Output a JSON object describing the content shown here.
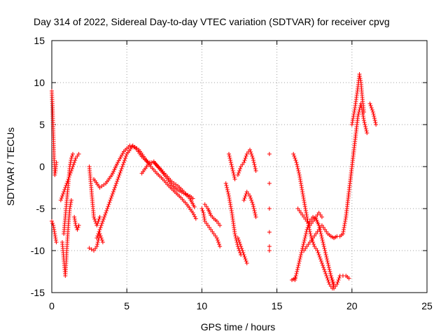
{
  "chart_data": {
    "type": "scatter",
    "title": "Day 314 of 2022, Sidereal Day-to-day VTEC variation (SDTVAR) for receiver cpvg",
    "xlabel": "GPS time / hours",
    "ylabel": "SDTVAR / TECUs",
    "xlim": [
      0,
      25
    ],
    "ylim": [
      -15,
      15
    ],
    "xticks": [
      0,
      5,
      10,
      15,
      20,
      25
    ],
    "yticks": [
      -15,
      -10,
      -5,
      0,
      5,
      10,
      15
    ],
    "grid": true,
    "marker": "+",
    "series_color": "#ff0000",
    "tracks": [
      {
        "name": "arc-01",
        "x": [
          0.0,
          0.05,
          0.1,
          0.15,
          0.2,
          0.25,
          0.3
        ],
        "y": [
          9.0,
          7.0,
          4.0,
          1.0,
          -1.0,
          -0.5,
          0.5
        ]
      },
      {
        "name": "arc-02",
        "x": [
          0.0,
          0.1,
          0.2,
          0.3
        ],
        "y": [
          -6.5,
          -7.0,
          -8.0,
          -9.0
        ]
      },
      {
        "name": "arc-03",
        "x": [
          0.7,
          0.8,
          0.9,
          1.0,
          1.1,
          1.2,
          1.3
        ],
        "y": [
          -9.0,
          -11.0,
          -13.0,
          -10.0,
          -7.0,
          -5.0,
          -4.0
        ]
      },
      {
        "name": "arc-04",
        "x": [
          0.6,
          0.8,
          1.0,
          1.2,
          1.4,
          1.6,
          1.8
        ],
        "y": [
          -4.0,
          -3.0,
          -2.0,
          -1.0,
          0.0,
          1.0,
          1.5
        ]
      },
      {
        "name": "arc-05",
        "x": [
          0.8,
          0.9,
          1.0,
          1.1,
          1.2,
          1.3,
          1.4
        ],
        "y": [
          -8.0,
          -6.0,
          -4.0,
          -2.0,
          0.0,
          1.0,
          1.5
        ]
      },
      {
        "name": "arc-06",
        "x": [
          1.5,
          1.6,
          1.7,
          1.8
        ],
        "y": [
          -6.0,
          -7.0,
          -7.5,
          -7.0
        ]
      },
      {
        "name": "arc-07",
        "x": [
          2.5,
          2.6,
          2.7,
          2.8,
          3.0,
          3.2
        ],
        "y": [
          0.0,
          -2.0,
          -4.0,
          -6.0,
          -7.0,
          -6.0
        ]
      },
      {
        "name": "arc-08",
        "x": [
          2.5,
          2.8,
          3.0,
          3.2,
          3.4
        ],
        "y": [
          -9.7,
          -10.0,
          -9.5,
          -8.0,
          -9.0
        ]
      },
      {
        "name": "arc-09",
        "x": [
          3.0,
          3.4,
          3.8,
          4.2,
          4.6,
          5.0,
          5.4,
          5.8,
          6.2,
          6.6,
          7.0,
          7.4,
          7.8,
          8.2,
          8.6,
          9.0,
          9.4,
          9.6
        ],
        "y": [
          -8.5,
          -6.5,
          -4.5,
          -2.5,
          -0.5,
          1.5,
          2.5,
          2.0,
          1.0,
          0.0,
          -0.8,
          -1.5,
          -2.3,
          -3.0,
          -3.7,
          -4.5,
          -5.5,
          -6.2
        ]
      },
      {
        "name": "arc-10",
        "x": [
          2.8,
          3.2,
          3.6,
          4.0,
          4.4,
          4.8,
          5.2,
          5.6,
          6.0,
          6.4,
          6.8,
          7.2,
          7.6,
          8.0,
          8.4,
          8.8,
          9.2,
          9.5
        ],
        "y": [
          -1.5,
          -2.5,
          -2.0,
          -1.0,
          0.5,
          1.8,
          2.5,
          2.2,
          1.2,
          0.5,
          0.5,
          -0.2,
          -1.0,
          -1.8,
          -2.3,
          -3.0,
          -3.8,
          -4.8
        ]
      },
      {
        "name": "arc-11",
        "x": [
          6.0,
          6.4,
          6.8,
          7.2,
          7.6,
          8.0,
          8.4,
          8.8,
          9.2,
          9.4
        ],
        "y": [
          -0.8,
          0.2,
          0.6,
          -0.3,
          -1.2,
          -2.2,
          -2.8,
          -3.2,
          -3.5,
          -3.8
        ]
      },
      {
        "name": "arc-12",
        "x": [
          10.0,
          10.1,
          10.2,
          10.4,
          10.6,
          10.8,
          11.0,
          11.2
        ],
        "y": [
          -5.0,
          -5.5,
          -6.5,
          -7.0,
          -7.5,
          -8.0,
          -8.5,
          -9.5
        ]
      },
      {
        "name": "arc-13",
        "x": [
          10.2,
          10.4,
          10.6,
          10.8,
          11.0,
          11.2
        ],
        "y": [
          -4.5,
          -5.0,
          -5.8,
          -6.2,
          -6.5,
          -7.0
        ]
      },
      {
        "name": "arc-14",
        "x": [
          11.6,
          11.8,
          12.0,
          12.2,
          12.4,
          12.6
        ],
        "y": [
          -2.0,
          -3.5,
          -5.5,
          -8.0,
          -9.5,
          -10.5
        ]
      },
      {
        "name": "arc-15",
        "x": [
          11.8,
          12.0,
          12.2
        ],
        "y": [
          1.5,
          0.0,
          -1.5
        ]
      },
      {
        "name": "arc-16",
        "x": [
          12.4,
          12.6,
          12.8,
          13.0,
          13.2,
          13.4,
          13.6
        ],
        "y": [
          -1.0,
          0.0,
          0.5,
          1.5,
          2.0,
          1.0,
          -0.5
        ]
      },
      {
        "name": "arc-17",
        "x": [
          12.8,
          13.0,
          13.2,
          13.4,
          13.6
        ],
        "y": [
          -4.0,
          -3.0,
          -3.5,
          -4.5,
          -6.0
        ]
      },
      {
        "name": "arc-18",
        "x": [
          12.4,
          12.6,
          12.8,
          13.0
        ],
        "y": [
          -8.5,
          -9.5,
          -10.5,
          -11.5
        ]
      },
      {
        "name": "arc-19",
        "x": [
          14.5,
          14.5,
          14.5,
          14.5,
          14.5,
          14.5
        ],
        "y": [
          1.5,
          -2.0,
          -5.0,
          -7.8,
          -9.5,
          -10.0
        ]
      },
      {
        "name": "arc-20",
        "x": [
          16.0,
          16.2
        ],
        "y": [
          -13.5,
          -13.3
        ]
      },
      {
        "name": "arc-21",
        "x": [
          16.1,
          16.3,
          16.5,
          16.7,
          16.9,
          17.1,
          17.3,
          17.5,
          17.7,
          17.9,
          18.1,
          18.3,
          18.5,
          18.7
        ],
        "y": [
          1.5,
          0.5,
          -1.0,
          -3.0,
          -5.0,
          -7.0,
          -8.5,
          -9.5,
          -10.0,
          -11.0,
          -12.0,
          -13.0,
          -14.0,
          -14.5
        ]
      },
      {
        "name": "arc-22",
        "x": [
          16.2,
          16.4,
          16.6,
          16.8,
          17.0,
          17.2,
          17.4,
          17.6,
          17.8,
          18.0,
          18.2,
          18.4,
          18.6,
          18.8
        ],
        "y": [
          -13.5,
          -12.0,
          -10.5,
          -9.0,
          -7.5,
          -6.5,
          -6.0,
          -6.2,
          -7.0,
          -8.5,
          -10.0,
          -11.5,
          -13.0,
          -14.0
        ]
      },
      {
        "name": "arc-23",
        "x": [
          16.8,
          17.0,
          17.2,
          17.4,
          17.6,
          17.8,
          18.0,
          18.2,
          18.4,
          18.6,
          18.8
        ],
        "y": [
          -10.0,
          -9.5,
          -9.0,
          -8.5,
          -8.0,
          -7.5,
          -7.0,
          -7.5,
          -8.0,
          -8.3,
          -8.5
        ]
      },
      {
        "name": "arc-24",
        "x": [
          16.4,
          16.6,
          16.8,
          17.0,
          17.2,
          17.4,
          17.6,
          17.8,
          18.0
        ],
        "y": [
          -5.0,
          -5.5,
          -6.0,
          -6.5,
          -7.0,
          -6.5,
          -6.0,
          -5.5,
          -6.0
        ]
      },
      {
        "name": "arc-25",
        "x": [
          18.8,
          19.0,
          19.2,
          19.4,
          19.6,
          19.8,
          20.0,
          20.2,
          20.4
        ],
        "y": [
          -8.5,
          -8.3,
          -8.3,
          -8.0,
          -6.0,
          -3.0,
          0.0,
          3.0,
          6.0
        ]
      },
      {
        "name": "arc-26",
        "x": [
          18.6,
          18.8,
          19.0,
          19.2,
          19.4,
          19.6,
          19.8
        ],
        "y": [
          -13.0,
          -14.5,
          -14.0,
          -13.0,
          -13.0,
          -13.0,
          -13.3
        ]
      },
      {
        "name": "arc-27",
        "x": [
          19.6,
          19.8,
          20.0,
          20.2,
          20.4,
          20.6,
          20.8,
          21.0
        ],
        "y": [
          -6.0,
          -3.0,
          0.0,
          3.0,
          6.0,
          7.5,
          5.5,
          4.0
        ]
      },
      {
        "name": "arc-28",
        "x": [
          20.0,
          20.2,
          20.4,
          20.5,
          20.6,
          20.7,
          20.8
        ],
        "y": [
          5.0,
          7.0,
          9.5,
          11.0,
          10.0,
          8.0,
          6.5
        ]
      },
      {
        "name": "arc-29",
        "x": [
          21.2,
          21.4,
          21.6
        ],
        "y": [
          7.5,
          6.5,
          5.0
        ]
      }
    ]
  }
}
